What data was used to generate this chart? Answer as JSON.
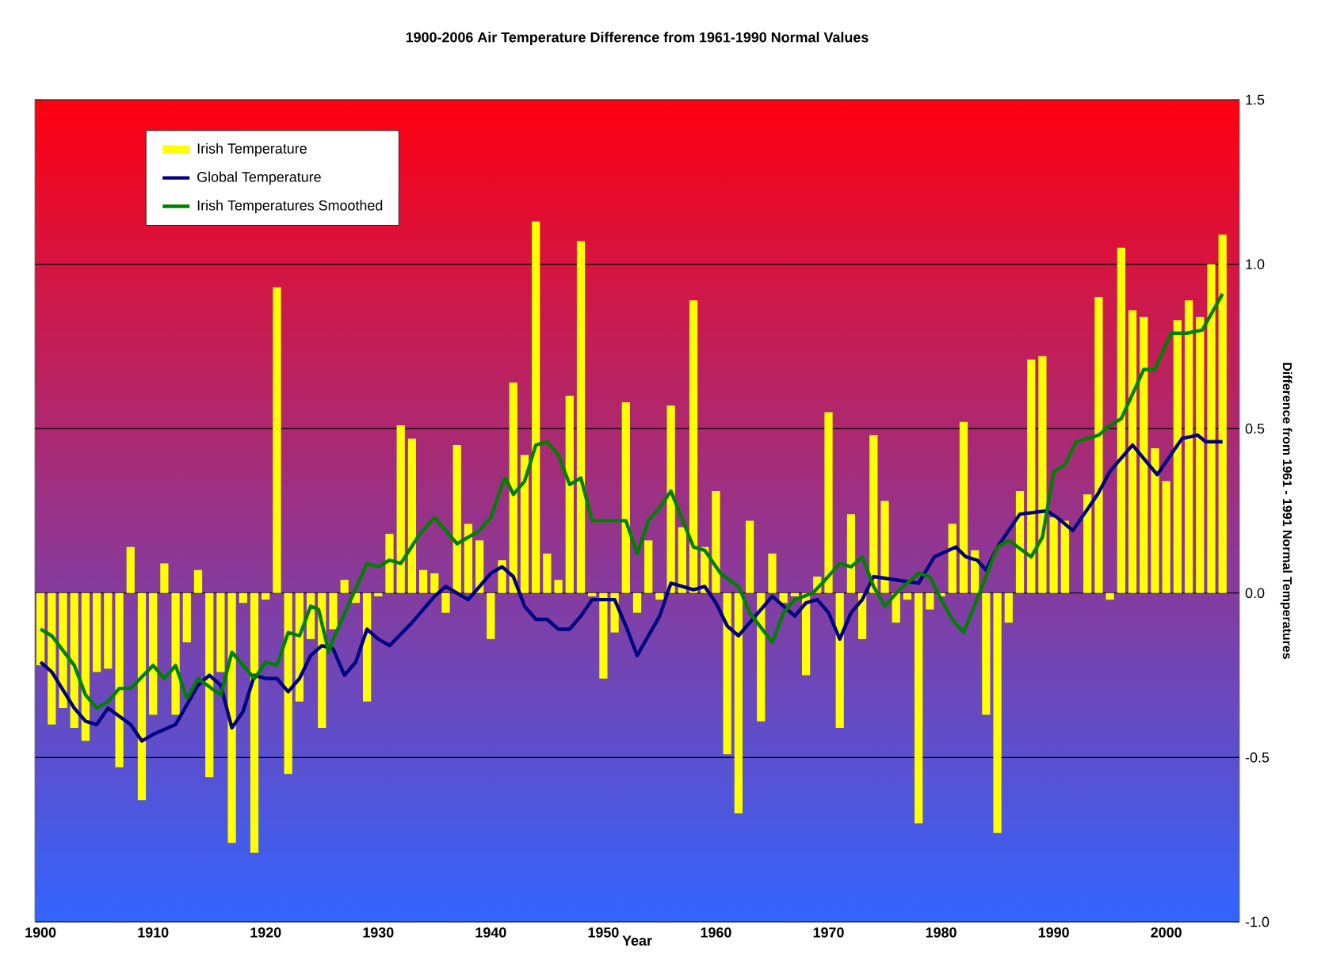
{
  "chart_data": {
    "type": "bar",
    "title": "1900-2006 Air Temperature Difference from 1961-1990 Normal Values",
    "xlabel": "Year",
    "ylabel": "Difference from 1961 - 1991 Normal Temperatures",
    "x": [
      1900,
      1901,
      1902,
      1903,
      1904,
      1905,
      1906,
      1907,
      1908,
      1909,
      1910,
      1911,
      1912,
      1913,
      1914,
      1915,
      1916,
      1917,
      1918,
      1919,
      1920,
      1921,
      1922,
      1923,
      1924,
      1925,
      1926,
      1927,
      1928,
      1929,
      1930,
      1931,
      1932,
      1933,
      1934,
      1935,
      1936,
      1937,
      1938,
      1939,
      1940,
      1941,
      1942,
      1943,
      1944,
      1945,
      1946,
      1947,
      1948,
      1949,
      1950,
      1951,
      1952,
      1953,
      1954,
      1955,
      1956,
      1957,
      1958,
      1959,
      1960,
      1961,
      1962,
      1963,
      1964,
      1965,
      1966,
      1967,
      1968,
      1969,
      1970,
      1971,
      1972,
      1973,
      1974,
      1975,
      1976,
      1977,
      1978,
      1979,
      1980,
      1981,
      1982,
      1983,
      1984,
      1985,
      1986,
      1987,
      1988,
      1989,
      1990,
      1991,
      1992,
      1993,
      1994,
      1995,
      1996,
      1997,
      1998,
      1999,
      2000,
      2001,
      2002,
      2003,
      2004,
      2005
    ],
    "series": [
      {
        "name": "Irish Temperature",
        "color": "#ffff00",
        "values": [
          -0.22,
          -0.4,
          -0.35,
          -0.41,
          -0.45,
          -0.24,
          -0.23,
          -0.53,
          0.14,
          -0.63,
          -0.37,
          0.09,
          -0.37,
          -0.15,
          0.07,
          -0.56,
          -0.24,
          -0.76,
          -0.03,
          -0.79,
          -0.02,
          0.93,
          -0.55,
          -0.33,
          -0.14,
          -0.41,
          -0.11,
          0.04,
          -0.03,
          -0.33,
          -0.01,
          0.18,
          0.51,
          0.47,
          0.07,
          0.06,
          -0.06,
          0.45,
          0.21,
          0.16,
          -0.14,
          0.1,
          0.64,
          0.42,
          1.13,
          0.12,
          0.04,
          0.6,
          1.07,
          -0.01,
          -0.26,
          -0.12,
          0.58,
          -0.06,
          0.16,
          -0.02,
          0.57,
          0.2,
          0.89,
          0.14,
          0.31,
          -0.49,
          -0.67,
          0.22,
          -0.39,
          0.12,
          -0.03,
          -0.01,
          -0.25,
          0.05,
          0.55,
          -0.41,
          0.24,
          -0.14,
          0.48,
          0.28,
          -0.09,
          -0.02,
          -0.7,
          -0.05,
          -0.01,
          0.21,
          0.52,
          0.13,
          -0.37,
          -0.73,
          -0.09,
          0.31,
          0.71,
          0.72,
          0.23,
          0.22,
          0.0,
          0.3,
          0.9,
          -0.02,
          1.05,
          0.86,
          0.84,
          0.44,
          0.34,
          0.83,
          0.89,
          0.84,
          1.0,
          1.09
        ]
      },
      {
        "name": "Global Temperature",
        "type": "line",
        "color": "#000080",
        "x": [
          1900,
          1901,
          1903,
          1904,
          1905,
          1906,
          1908,
          1909,
          1910,
          1912,
          1914,
          1915,
          1916,
          1917,
          1918,
          1919,
          1920,
          1921,
          1922,
          1923,
          1924,
          1925,
          1926,
          1927,
          1928,
          1929,
          1930,
          1931,
          1933,
          1935,
          1936,
          1937,
          1938,
          1939,
          1940,
          1941,
          1942,
          1943,
          1944,
          1945,
          1946,
          1947,
          1948,
          1949,
          1951,
          1952,
          1953,
          1955,
          1956,
          1957,
          1958,
          1959,
          1960,
          1961,
          1962,
          1963,
          1964,
          1965,
          1966,
          1967,
          1968,
          1969,
          1970,
          1971,
          1972,
          1973,
          1974,
          1978,
          1979.4,
          1981.3,
          1982.2,
          1983.2,
          1984,
          1985,
          1987,
          1989.4,
          1990.3,
          1991.7,
          1993.9,
          1995,
          1997,
          1999.2,
          2001.4,
          2002.8,
          2003.5,
          2005
        ],
        "values": [
          -0.21,
          -0.24,
          -0.35,
          -0.39,
          -0.4,
          -0.35,
          -0.4,
          -0.45,
          -0.43,
          -0.4,
          -0.28,
          -0.25,
          -0.28,
          -0.41,
          -0.36,
          -0.25,
          -0.26,
          -0.26,
          -0.3,
          -0.26,
          -0.19,
          -0.16,
          -0.17,
          -0.25,
          -0.21,
          -0.11,
          -0.14,
          -0.16,
          -0.09,
          -0.01,
          0.02,
          0.0,
          -0.02,
          0.02,
          0.06,
          0.08,
          0.05,
          -0.04,
          -0.08,
          -0.08,
          -0.11,
          -0.11,
          -0.07,
          -0.02,
          -0.02,
          -0.1,
          -0.19,
          -0.07,
          0.03,
          0.02,
          0.01,
          0.02,
          -0.03,
          -0.1,
          -0.13,
          -0.09,
          -0.05,
          -0.01,
          -0.04,
          -0.07,
          -0.03,
          -0.02,
          -0.06,
          -0.14,
          -0.06,
          -0.02,
          0.05,
          0.03,
          0.11,
          0.14,
          0.11,
          0.1,
          0.07,
          0.14,
          0.24,
          0.25,
          0.23,
          0.19,
          0.3,
          0.37,
          0.45,
          0.36,
          0.47,
          0.48,
          0.46,
          0.46
        ]
      },
      {
        "name": "Irish Temperatures Smoothed",
        "type": "line",
        "color": "#008000",
        "x": [
          1900,
          1901,
          1903,
          1904,
          1905,
          1906,
          1907,
          1908,
          1910,
          1911,
          1912,
          1913,
          1914,
          1916,
          1917,
          1919,
          1920,
          1921,
          1922,
          1923,
          1924,
          1924.7,
          1925.6,
          1926,
          1929,
          1930,
          1931,
          1932,
          1933.7,
          1935,
          1937,
          1939,
          1940,
          1941,
          1941.3,
          1942,
          1943,
          1944,
          1945,
          1946,
          1947,
          1948,
          1949,
          1950,
          1951,
          1952,
          1953,
          1954,
          1955,
          1956,
          1958,
          1959,
          1960.4,
          1962,
          1963,
          1965,
          1966,
          1967,
          1968.6,
          1969.7,
          1971,
          1972,
          1973,
          1974,
          1975,
          1976.3,
          1978,
          1979,
          1980,
          1981,
          1982,
          1983.4,
          1985,
          1986,
          1988,
          1989,
          1990,
          1991,
          1992,
          1994,
          1995,
          1996,
          1998,
          1999,
          2000.4,
          2001.8,
          2003.2,
          2005
        ],
        "values": [
          -0.11,
          -0.13,
          -0.22,
          -0.31,
          -0.35,
          -0.33,
          -0.29,
          -0.29,
          -0.22,
          -0.26,
          -0.22,
          -0.32,
          -0.26,
          -0.31,
          -0.18,
          -0.26,
          -0.21,
          -0.22,
          -0.12,
          -0.13,
          -0.04,
          -0.05,
          -0.18,
          -0.14,
          0.09,
          0.08,
          0.1,
          0.09,
          0.18,
          0.23,
          0.15,
          0.19,
          0.23,
          0.33,
          0.35,
          0.3,
          0.34,
          0.45,
          0.46,
          0.42,
          0.33,
          0.35,
          0.22,
          0.22,
          0.22,
          0.22,
          0.12,
          0.22,
          0.26,
          0.31,
          0.14,
          0.13,
          0.06,
          0.02,
          -0.06,
          -0.15,
          -0.06,
          -0.02,
          0.0,
          0.04,
          0.09,
          0.08,
          0.11,
          0.02,
          -0.04,
          0.01,
          0.06,
          0.05,
          -0.02,
          -0.08,
          -0.12,
          0.0,
          0.14,
          0.16,
          0.11,
          0.17,
          0.37,
          0.39,
          0.46,
          0.48,
          0.51,
          0.53,
          0.68,
          0.68,
          0.79,
          0.79,
          0.8,
          0.91
        ]
      }
    ],
    "xlim": [
      1899.5,
      2006.5
    ],
    "xticks": [
      1900,
      1910,
      1920,
      1930,
      1940,
      1950,
      1960,
      1970,
      1980,
      1990,
      2000
    ],
    "ylim": [
      -1.0,
      1.5
    ],
    "yticks": [
      {
        "value": -1.0,
        "label": "-1.0"
      },
      {
        "value": -0.5,
        "label": "-0.5"
      },
      {
        "value": 0,
        "label": "0.0"
      },
      {
        "value": 0.5,
        "label": "0.5"
      },
      {
        "value": 1.0,
        "label": "1.0"
      },
      {
        "value": 1.5,
        "label": "1.5"
      }
    ],
    "grid": "y",
    "legend": "top left"
  }
}
